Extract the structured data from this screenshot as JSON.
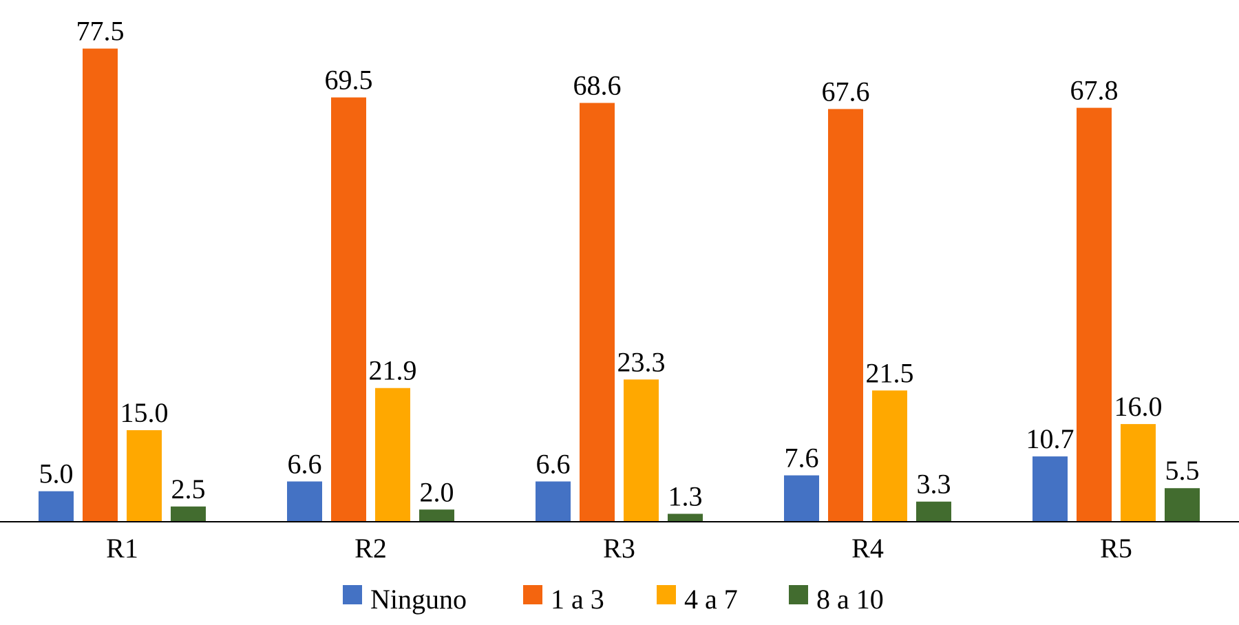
{
  "chart_data": {
    "type": "bar",
    "title": "",
    "xlabel": "",
    "ylabel": "",
    "categories": [
      "R1",
      "R2",
      "R3",
      "R4",
      "R5"
    ],
    "ylim": [
      0,
      80
    ],
    "grid": false,
    "legend_position": "bottom",
    "series": [
      {
        "name": "Ninguno",
        "color": "#4472C4",
        "values": [
          5.0,
          6.6,
          6.6,
          7.6,
          10.7
        ],
        "labels": [
          "5.0",
          "6.6",
          "6.6",
          "7.6",
          "10.7"
        ]
      },
      {
        "name": "1 a 3",
        "color": "#F4650F",
        "values": [
          77.5,
          69.5,
          68.6,
          67.6,
          67.8
        ],
        "labels": [
          "77.5",
          "69.5",
          "68.6",
          "67.6",
          "67.8"
        ]
      },
      {
        "name": "4 a 7",
        "color": "#FFA800",
        "values": [
          15.0,
          21.9,
          23.3,
          21.5,
          16.0
        ],
        "labels": [
          "15.0",
          "21.9",
          "23.3",
          "21.5",
          "16.0"
        ]
      },
      {
        "name": "8 a 10",
        "color": "#426C2F",
        "values": [
          2.5,
          2.0,
          1.3,
          3.3,
          5.5
        ],
        "labels": [
          "2.5",
          "2.0",
          "1.3",
          "3.3",
          "5.5"
        ]
      }
    ]
  }
}
